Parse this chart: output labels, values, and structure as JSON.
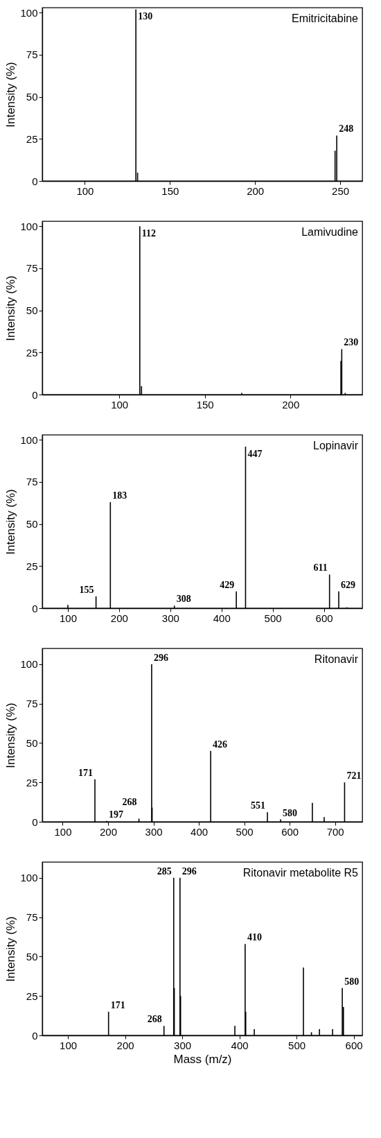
{
  "chart_data": [
    {
      "type": "bar",
      "title": "Emitricitabine",
      "ylabel": "Intensity (%)",
      "x": [
        130,
        131,
        247,
        248
      ],
      "series": [
        {
          "color": "#000000",
          "values": [
            102,
            5,
            18,
            27
          ]
        }
      ],
      "xlim": [
        75,
        263
      ],
      "xticks": [
        100,
        150,
        200,
        250
      ],
      "ylim": [
        0,
        103
      ],
      "yticks": [
        0,
        25,
        50,
        75,
        100
      ],
      "annotations": [
        {
          "text": "130",
          "x": 130,
          "y": 102
        },
        {
          "text": "248",
          "x": 248,
          "y": 27
        }
      ]
    },
    {
      "type": "bar",
      "title": "Lamivudine",
      "ylabel": "Intensity (%)",
      "x": [
        112,
        113,
        171.5,
        229.5,
        230,
        232
      ],
      "series": [
        {
          "color": "#000000",
          "values": [
            100,
            5,
            1,
            20,
            27,
            1
          ]
        }
      ],
      "xlim": [
        55,
        242
      ],
      "xticks": [
        100,
        150,
        200
      ],
      "ylim": [
        0,
        103
      ],
      "yticks": [
        0,
        25,
        50,
        75,
        100
      ],
      "annotations": [
        {
          "text": "112",
          "x": 112,
          "y": 100
        },
        {
          "text": "230",
          "x": 230,
          "y": 27
        }
      ]
    },
    {
      "type": "bar",
      "title": "Lopinavir",
      "ylabel": "Intensity (%)",
      "x": [
        100,
        155,
        183,
        308,
        429,
        447,
        611,
        629,
        645
      ],
      "series": [
        {
          "color": "#000000",
          "values": [
            2,
            7,
            63,
            1.5,
            10,
            96,
            20,
            10,
            0.5
          ]
        }
      ],
      "xlim": [
        50,
        675
      ],
      "xticks": [
        100,
        200,
        300,
        400,
        500,
        600
      ],
      "ylim": [
        0,
        103
      ],
      "yticks": [
        0,
        25,
        50,
        75,
        100
      ],
      "annotations": [
        {
          "text": "155",
          "x": 155,
          "y": 7
        },
        {
          "text": "183",
          "x": 183,
          "y": 63
        },
        {
          "text": "308",
          "x": 308,
          "y": 1.5
        },
        {
          "text": "429",
          "x": 429,
          "y": 10
        },
        {
          "text": "447",
          "x": 447,
          "y": 96
        },
        {
          "text": "611",
          "x": 611,
          "y": 20
        },
        {
          "text": "629",
          "x": 629,
          "y": 10
        }
      ]
    },
    {
      "type": "bar",
      "title": "Ritonavir",
      "ylabel": "Intensity (%)",
      "x": [
        171,
        197,
        268,
        296,
        297,
        426,
        551,
        580,
        650,
        676,
        721
      ],
      "series": [
        {
          "color": "#000000",
          "values": [
            27,
            0.5,
            2,
            100,
            9,
            45,
            6,
            1.5,
            12,
            3,
            25
          ]
        }
      ],
      "xlim": [
        55,
        760
      ],
      "xticks": [
        100,
        200,
        300,
        400,
        500,
        600,
        700
      ],
      "ylim": [
        0,
        110
      ],
      "yticks": [
        0,
        25,
        50,
        75,
        100
      ],
      "annotations": [
        {
          "text": "171",
          "x": 171,
          "y": 27
        },
        {
          "text": "197",
          "x": 197,
          "y": 0.5
        },
        {
          "text": "268",
          "x": 268,
          "y": 2
        },
        {
          "text": "296",
          "x": 296,
          "y": 100
        },
        {
          "text": "426",
          "x": 426,
          "y": 45
        },
        {
          "text": "551",
          "x": 551,
          "y": 6
        },
        {
          "text": "580",
          "x": 580,
          "y": 1.5
        },
        {
          "text": "721",
          "x": 721,
          "y": 25
        }
      ]
    },
    {
      "type": "bar",
      "title": "Ritonavir metabolite R5",
      "ylabel": "Intensity (%)",
      "xlabel": "Mass (m/z)",
      "x": [
        171,
        268,
        285,
        286,
        296,
        297,
        392,
        410,
        411,
        426,
        512,
        526,
        540,
        563,
        580,
        582
      ],
      "series": [
        {
          "color": "#000000",
          "values": [
            15,
            6,
            100,
            30,
            100,
            25,
            6,
            58,
            15,
            4,
            43,
            2,
            4,
            4,
            30,
            18
          ]
        }
      ],
      "xlim": [
        55,
        615
      ],
      "xticks": [
        100,
        200,
        300,
        400,
        500,
        600
      ],
      "ylim": [
        0,
        110
      ],
      "yticks": [
        0,
        25,
        50,
        75,
        100
      ],
      "annotations": [
        {
          "text": "171",
          "x": 171,
          "y": 15
        },
        {
          "text": "268",
          "x": 268,
          "y": 6
        },
        {
          "text": "285",
          "x": 285,
          "y": 100
        },
        {
          "text": "296",
          "x": 296,
          "y": 100
        },
        {
          "text": "410",
          "x": 410,
          "y": 58
        },
        {
          "text": "580",
          "x": 580,
          "y": 30
        }
      ]
    }
  ]
}
